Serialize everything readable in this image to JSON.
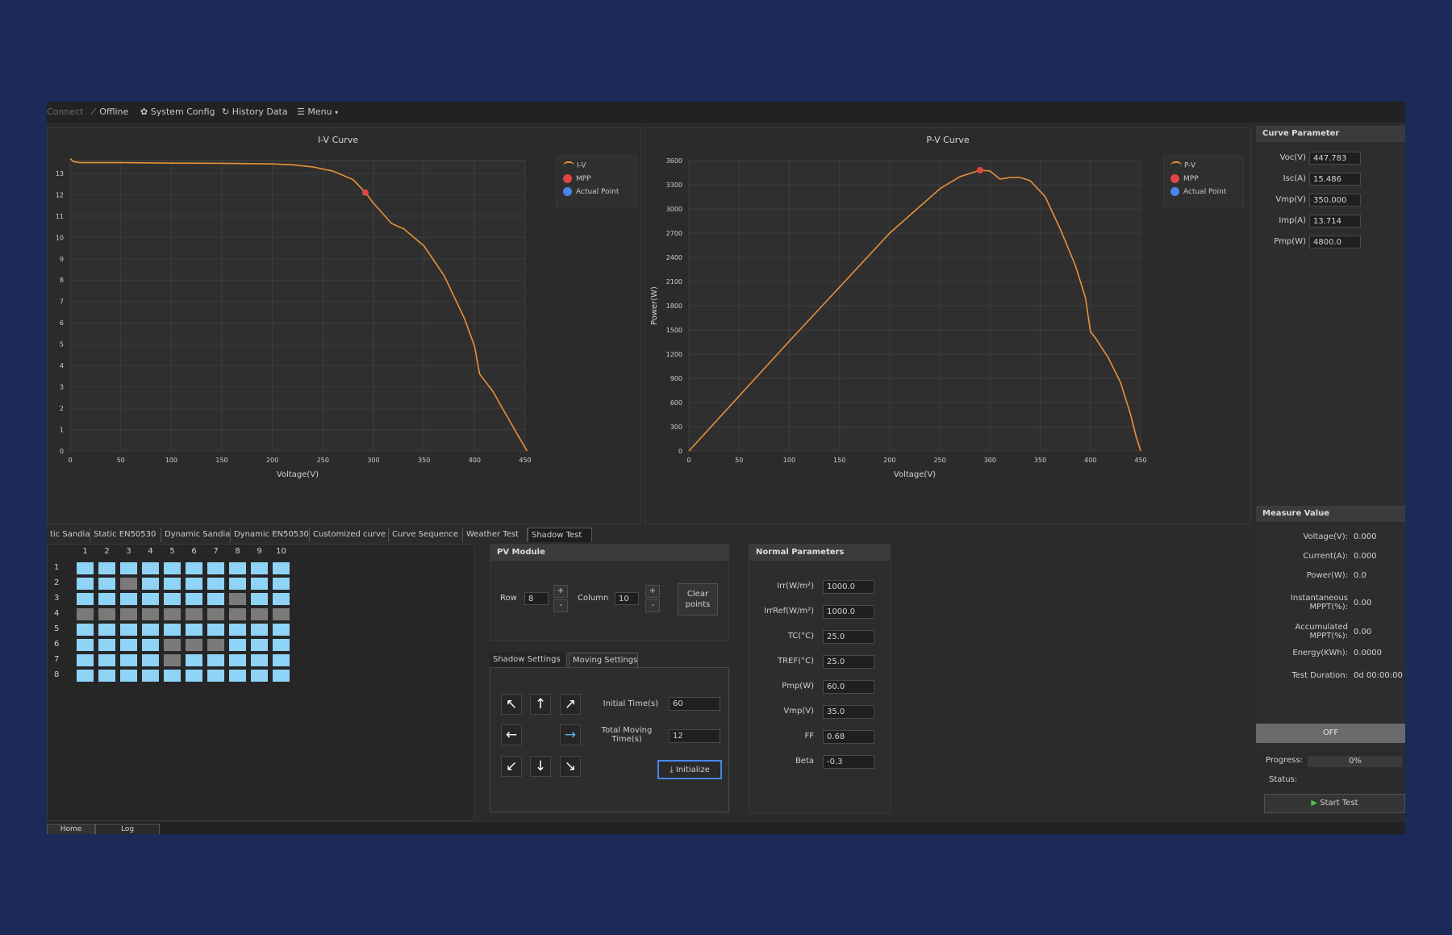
{
  "toolbar": {
    "connect": "Connect",
    "offline": "Offline",
    "system_config": "System Config",
    "history_data": "History Data",
    "menu": "Menu"
  },
  "colors": {
    "background": "#1b2a58",
    "curve": "#e8913a",
    "mpp": "#e04646",
    "actual_point": "#4a86e8",
    "cell_on": "#8fd3f7",
    "cell_shadow": "#7a7a7a"
  },
  "iv_chart": {
    "title": "I-V Curve",
    "xlabel": "Voltage(V)",
    "x_ticks": [
      "0",
      "50",
      "100",
      "150",
      "200",
      "250",
      "300",
      "350",
      "400",
      "450"
    ],
    "y_ticks": [
      "0",
      "1",
      "2",
      "3",
      "4",
      "5",
      "6",
      "7",
      "8",
      "9",
      "10",
      "11",
      "12",
      "13"
    ],
    "legend": [
      "I-V",
      "MPP",
      "Actual Point"
    ]
  },
  "pv_chart": {
    "title": "P-V Curve",
    "xlabel": "Voltage(V)",
    "ylabel": "Power(W)",
    "x_ticks": [
      "0",
      "50",
      "100",
      "150",
      "200",
      "250",
      "300",
      "350",
      "400",
      "450"
    ],
    "y_ticks": [
      "0",
      "300",
      "600",
      "900",
      "1200",
      "1500",
      "1800",
      "2100",
      "2400",
      "2700",
      "3000",
      "3300",
      "3600"
    ],
    "legend": [
      "P-V",
      "MPP",
      "Actual Point"
    ]
  },
  "chart_data": [
    {
      "type": "line",
      "title": "I-V Curve",
      "xlabel": "Voltage(V)",
      "ylabel": "",
      "xlim": [
        0,
        450
      ],
      "ylim": [
        0,
        13.6
      ],
      "series": [
        {
          "name": "I-V",
          "x": [
            0,
            3,
            10,
            50,
            100,
            150,
            200,
            220,
            240,
            260,
            280,
            292,
            300,
            318,
            330,
            350,
            370,
            390,
            400,
            405,
            418,
            430,
            442,
            452
          ],
          "y": [
            13.7,
            13.55,
            13.5,
            13.5,
            13.48,
            13.47,
            13.44,
            13.4,
            13.3,
            13.1,
            12.7,
            12.1,
            11.6,
            10.65,
            10.4,
            9.6,
            8.2,
            6.2,
            4.9,
            3.6,
            2.8,
            1.8,
            0.8,
            0
          ]
        },
        {
          "name": "MPP",
          "x": [
            292
          ],
          "y": [
            12.1
          ]
        }
      ]
    },
    {
      "type": "line",
      "title": "P-V Curve",
      "xlabel": "Voltage(V)",
      "ylabel": "Power(W)",
      "xlim": [
        0,
        450
      ],
      "ylim": [
        0,
        3600
      ],
      "series": [
        {
          "name": "P-V",
          "x": [
            0,
            50,
            100,
            150,
            200,
            250,
            270,
            290,
            300,
            310,
            320,
            330,
            340,
            355,
            370,
            385,
            395,
            400,
            405,
            418,
            430,
            440,
            445,
            450
          ],
          "y": [
            0,
            680,
            1360,
            2030,
            2700,
            3250,
            3400,
            3480,
            3470,
            3370,
            3390,
            3390,
            3350,
            3150,
            2750,
            2300,
            1900,
            1480,
            1400,
            1150,
            850,
            450,
            200,
            0
          ]
        },
        {
          "name": "MPP",
          "x": [
            290
          ],
          "y": [
            3480
          ]
        }
      ]
    }
  ],
  "curve_parameter": {
    "title": "Curve Parameter",
    "rows": [
      {
        "label": "Voc(V)",
        "value": "447.783"
      },
      {
        "label": "Isc(A)",
        "value": "15.486"
      },
      {
        "label": "Vmp(V)",
        "value": "350.000"
      },
      {
        "label": "Imp(A)",
        "value": "13.714"
      },
      {
        "label": "Pmp(W)",
        "value": "4800.0"
      }
    ]
  },
  "measure_value": {
    "title": "Measure Value",
    "rows": [
      {
        "label": "Voltage(V):",
        "value": "0.000"
      },
      {
        "label": "Current(A):",
        "value": "0.000"
      },
      {
        "label": "Power(W):",
        "value": "0.0"
      },
      {
        "label": "Instantaneous MPPT(%):",
        "value": "0.00"
      },
      {
        "label": "Accumulated MPPT(%):",
        "value": "0.00"
      },
      {
        "label": "Energy(KWh):",
        "value": "0.0000"
      },
      {
        "label": "Test Duration:",
        "value": "0d 00:00:00"
      }
    ],
    "off_label": "OFF",
    "progress_label": "Progress:",
    "progress_value": "0%",
    "progress_fraction": 0,
    "status_label": "Status:",
    "start_label": "Start Test"
  },
  "tabs": [
    "tic Sandia",
    "Static EN50530",
    "Dynamic Sandia",
    "Dynamic EN50530",
    "Customized curve",
    "Curve Sequence",
    "Weather Test",
    "Shadow Test"
  ],
  "active_tab": 7,
  "shadow_grid": {
    "columns": [
      "1",
      "2",
      "3",
      "4",
      "5",
      "6",
      "7",
      "8",
      "9",
      "10"
    ],
    "rows": [
      "1",
      "2",
      "3",
      "4",
      "5",
      "6",
      "7",
      "8"
    ],
    "shaded": [
      [
        2,
        3
      ],
      [
        3,
        8
      ],
      [
        4,
        1
      ],
      [
        4,
        2
      ],
      [
        4,
        3
      ],
      [
        4,
        4
      ],
      [
        4,
        5
      ],
      [
        4,
        6
      ],
      [
        4,
        7
      ],
      [
        4,
        8
      ],
      [
        4,
        9
      ],
      [
        4,
        10
      ],
      [
        6,
        5
      ],
      [
        6,
        6
      ],
      [
        6,
        7
      ],
      [
        7,
        5
      ]
    ]
  },
  "pv_module": {
    "title": "PV Module",
    "row_label": "Row",
    "row_value": "8",
    "column_label": "Column",
    "column_value": "10",
    "plus": "+",
    "minus": "-",
    "clear_label": "Clear points"
  },
  "subtabs": [
    "Shadow Settings",
    "Moving Settings"
  ],
  "active_subtab": 1,
  "moving": {
    "initial_time_label": "Initial Time(s)",
    "initial_time_value": "60",
    "total_time_label": "Total Moving Time(s)",
    "total_time_value": "12",
    "init_label": "Initialize"
  },
  "normal_parameters": {
    "title": "Normal Parameters",
    "rows": [
      {
        "label": "Irr(W/m²)",
        "value": "1000.0"
      },
      {
        "label": "IrrRef(W/m²)",
        "value": "1000.0"
      },
      {
        "label": "TC(°C)",
        "value": "25.0"
      },
      {
        "label": "TREF(°C)",
        "value": "25.0"
      },
      {
        "label": "Pmp(W)",
        "value": "60.0"
      },
      {
        "label": "Vmp(V)",
        "value": "35.0"
      },
      {
        "label": "FF",
        "value": "0.68"
      },
      {
        "label": "Beta",
        "value": "-0.3"
      }
    ]
  },
  "bottom_tabs": [
    "Home",
    "Log"
  ]
}
